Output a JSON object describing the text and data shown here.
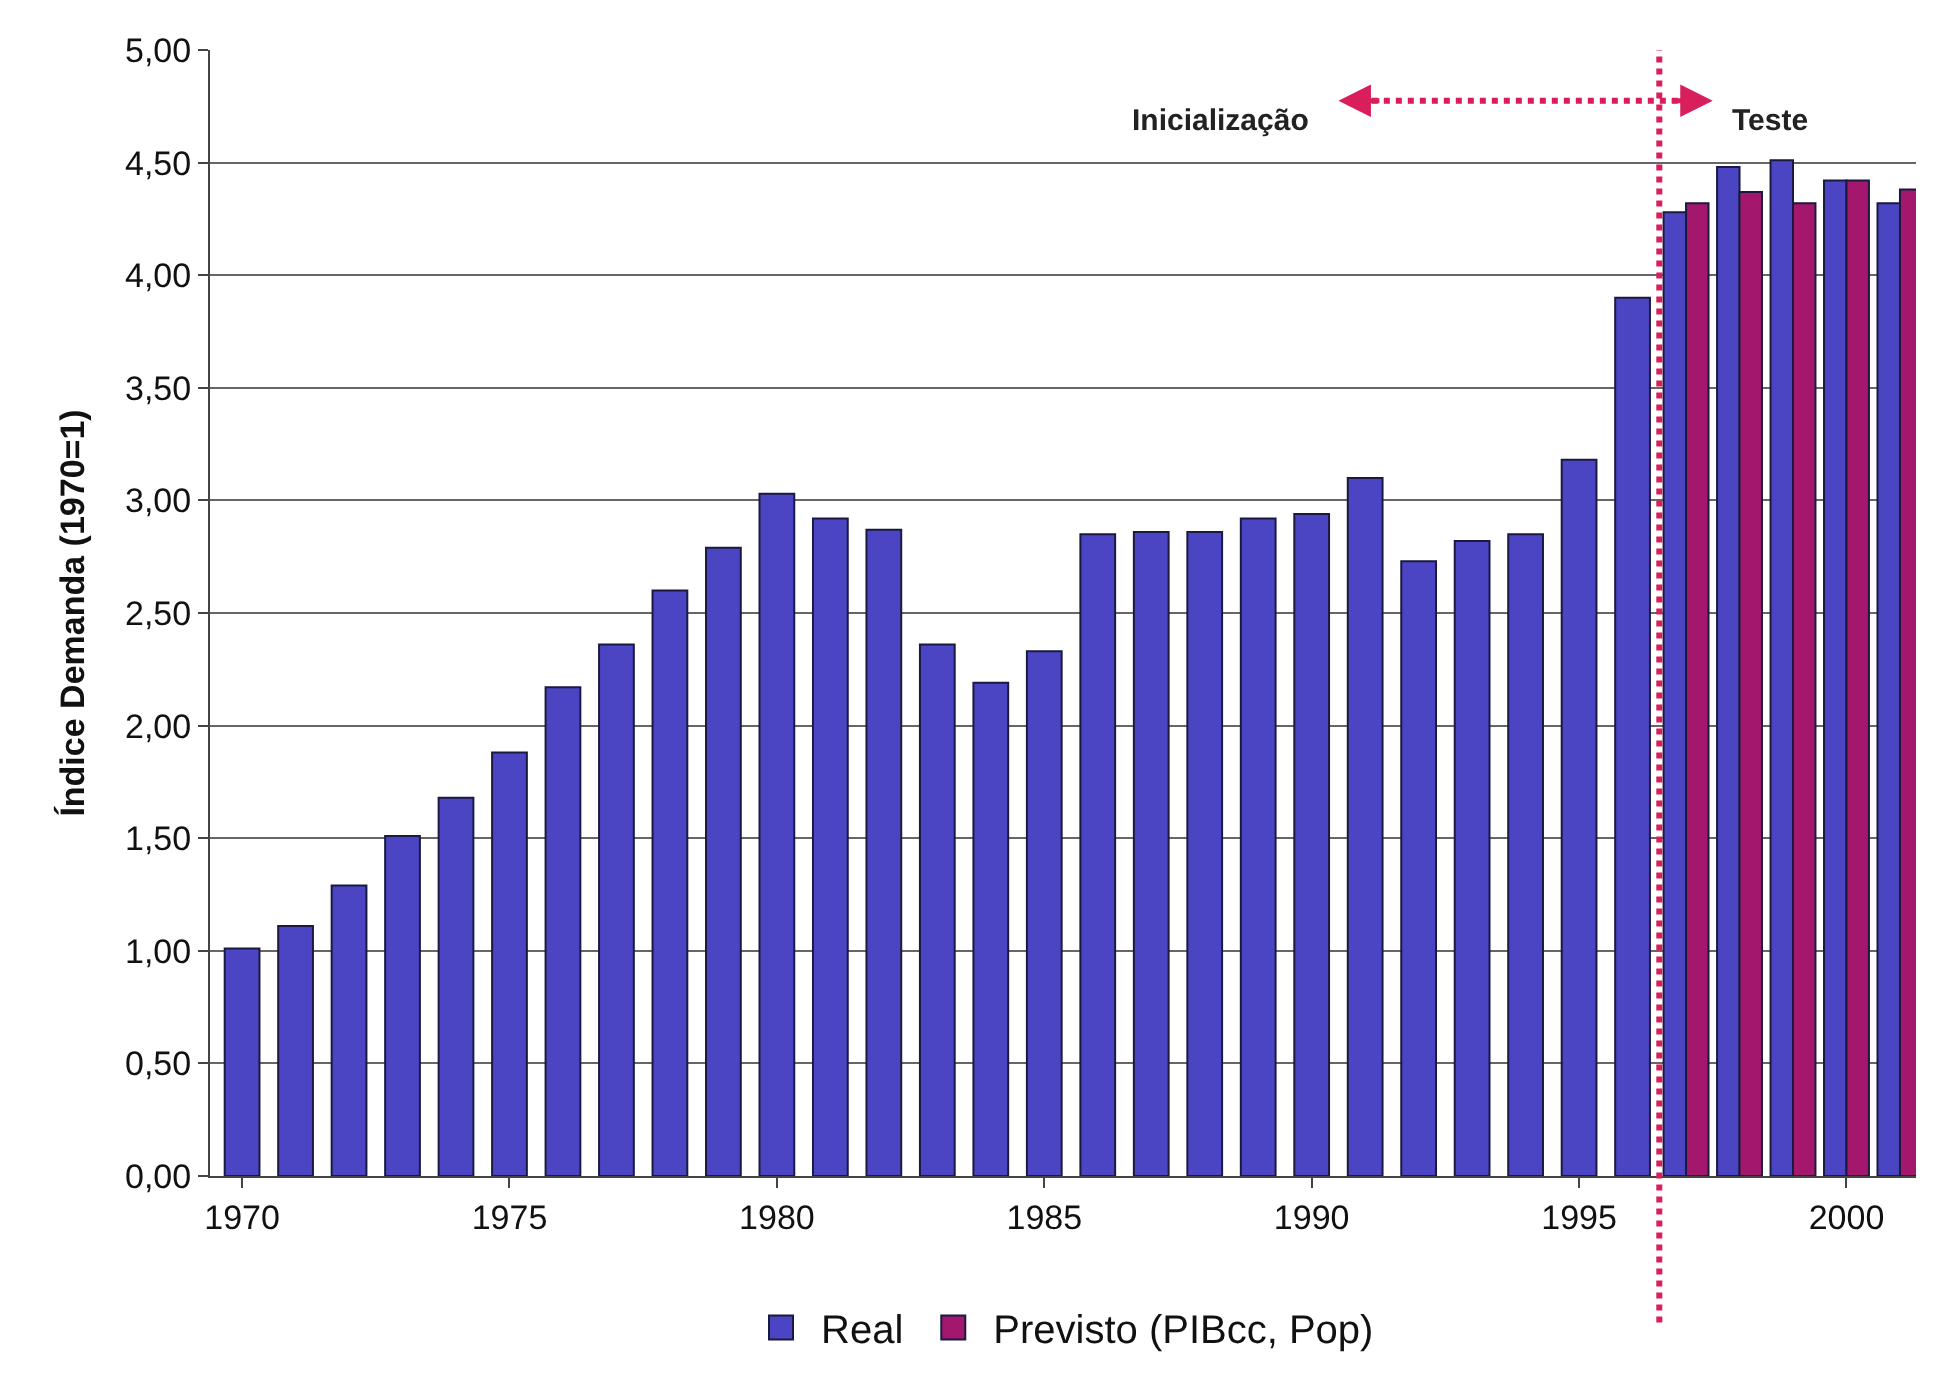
{
  "chart_data": {
    "type": "bar",
    "ylabel": "Índice Demanda (1970=1)",
    "x": [
      1970,
      1971,
      1972,
      1973,
      1974,
      1975,
      1976,
      1977,
      1978,
      1979,
      1980,
      1981,
      1982,
      1983,
      1984,
      1985,
      1986,
      1987,
      1988,
      1989,
      1990,
      1991,
      1992,
      1993,
      1994,
      1995,
      1996,
      1997,
      1998,
      1999,
      2000,
      2001
    ],
    "series": [
      {
        "name": "Real",
        "color": "#4b45c4",
        "values": [
          1.01,
          1.11,
          1.29,
          1.51,
          1.68,
          1.88,
          2.17,
          2.36,
          2.6,
          2.79,
          3.03,
          2.92,
          2.87,
          2.36,
          2.19,
          2.33,
          2.85,
          2.86,
          2.86,
          2.92,
          2.94,
          3.1,
          2.73,
          2.82,
          2.85,
          3.18,
          3.9,
          4.28,
          4.48,
          4.51,
          4.42,
          4.32
        ]
      },
      {
        "name": "Previsto (PIBcc, Pop)",
        "color": "#a3176c",
        "values": [
          null,
          null,
          null,
          null,
          null,
          null,
          null,
          null,
          null,
          null,
          null,
          null,
          null,
          null,
          null,
          null,
          null,
          null,
          null,
          null,
          null,
          null,
          null,
          null,
          null,
          null,
          null,
          4.32,
          4.37,
          4.32,
          4.42,
          4.38
        ]
      }
    ],
    "xlim": [
      1969.4,
      2001.3
    ],
    "xticks": [
      1970,
      1975,
      1980,
      1985,
      1990,
      1995,
      2000
    ],
    "ylim": [
      0,
      5
    ],
    "yticks": [
      {
        "value": 0,
        "label": "0,00"
      },
      {
        "value": 0.5,
        "label": "0,50"
      },
      {
        "value": 1,
        "label": "1,00"
      },
      {
        "value": 1.5,
        "label": "1,50"
      },
      {
        "value": 2,
        "label": "2,00"
      },
      {
        "value": 2.5,
        "label": "2,50"
      },
      {
        "value": 3,
        "label": "3,00"
      },
      {
        "value": 3.5,
        "label": "3,50"
      },
      {
        "value": 4,
        "label": "4,00"
      },
      {
        "value": 4.5,
        "label": "4,50"
      },
      {
        "value": 5,
        "label": "5,00"
      }
    ],
    "ref_lines": [
      {
        "axis": "x",
        "value": 1996.5,
        "color": "#d81e5b",
        "line_style": "dotted"
      }
    ],
    "annotations": [
      "Inicialização",
      "Teste"
    ],
    "grid": "y",
    "legend": "bottom"
  }
}
